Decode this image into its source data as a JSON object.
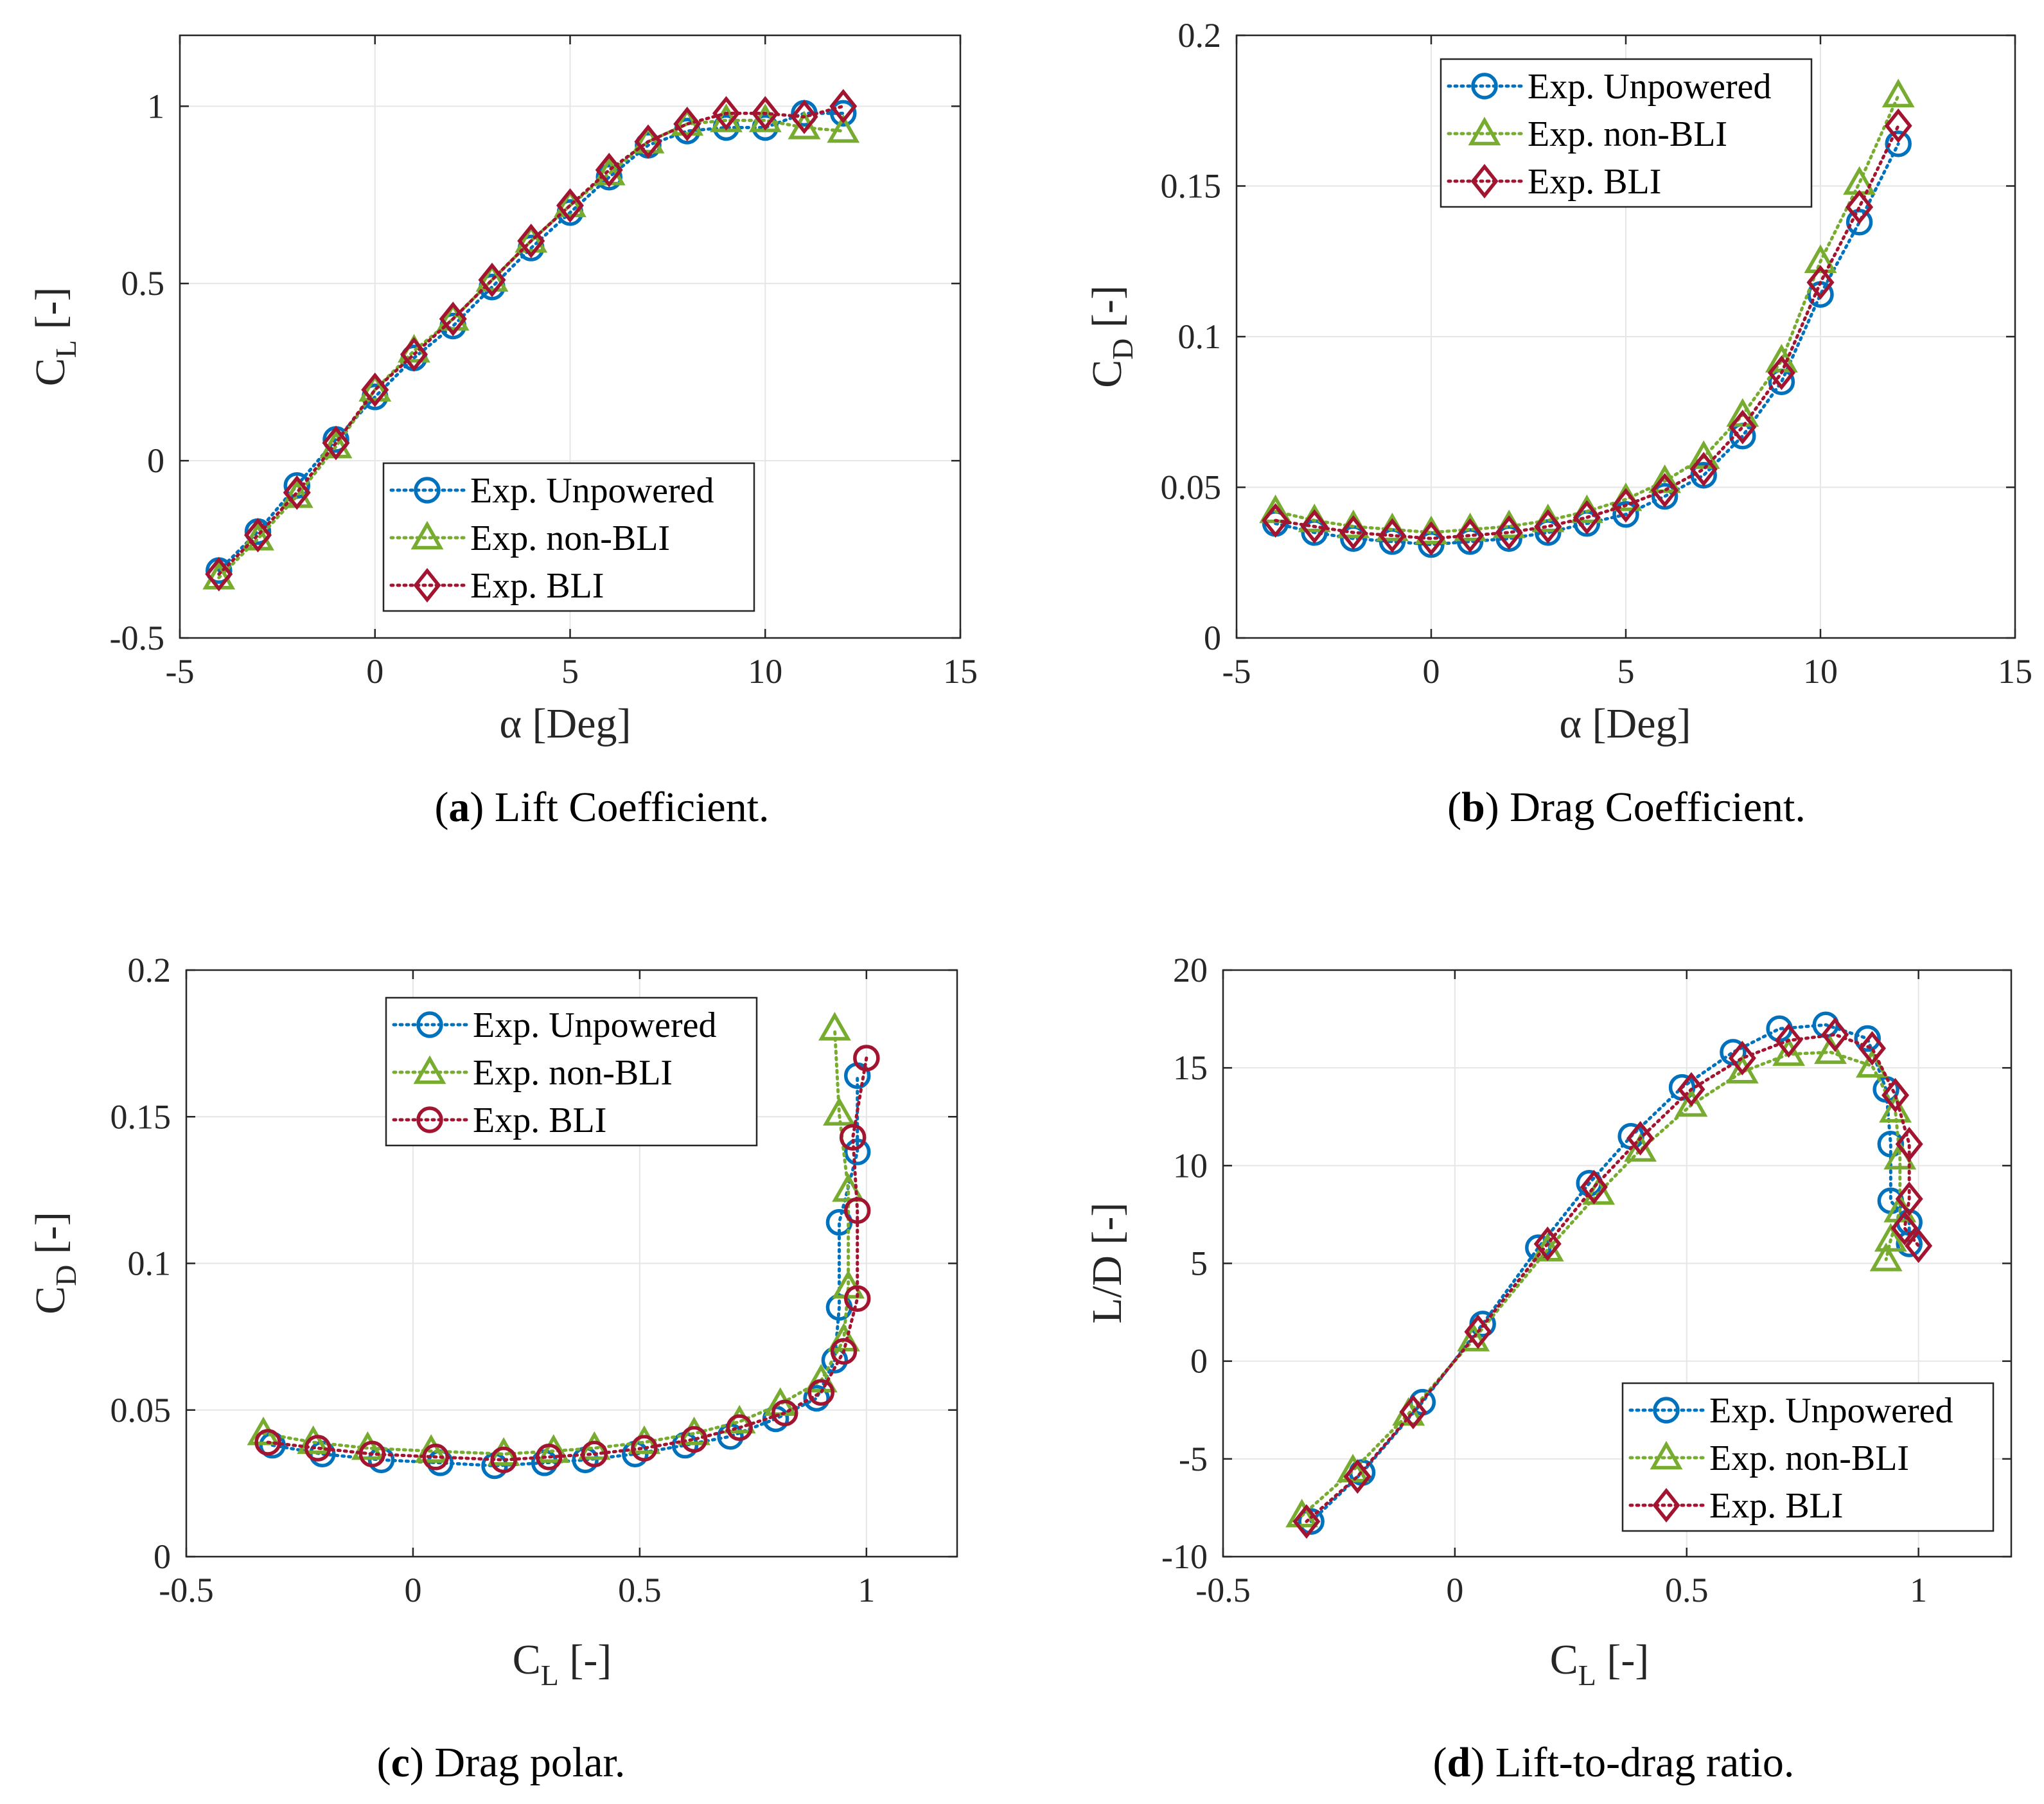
{
  "series_styles": {
    "unpowered": {
      "color": "#0072BD"
    },
    "nonbli": {
      "color": "#77AC30"
    },
    "bli": {
      "color": "#A2142F"
    }
  },
  "chart_data": [
    {
      "id": "a",
      "type": "line",
      "caption_letter": "(a)",
      "caption_text": " Lift Coefficient.",
      "xlabel": "α [Deg]",
      "ylabel_main": "C",
      "ylabel_sub": "L",
      "ylabel_unit": " [-]",
      "xlim": [
        -5,
        15
      ],
      "ylim": [
        -0.5,
        1.2
      ],
      "xticks": [
        -5,
        0,
        5,
        10,
        15
      ],
      "xtick_labels": [
        "-5",
        "0",
        "5",
        "10",
        "15"
      ],
      "yticks": [
        -0.5,
        0,
        0.5,
        1
      ],
      "ytick_labels": [
        "-0.5",
        "0",
        "0.5",
        "1"
      ],
      "grid": true,
      "legend_position": "bottom-right",
      "series": [
        {
          "name": "Exp. Unpowered",
          "style": "unpowered",
          "marker": "circle",
          "x": [
            -4,
            -3,
            -2,
            -1,
            0,
            1,
            2,
            3,
            4,
            5,
            6,
            7,
            8,
            9,
            10,
            11,
            12
          ],
          "y": [
            -0.31,
            -0.2,
            -0.07,
            0.06,
            0.18,
            0.29,
            0.38,
            0.49,
            0.6,
            0.7,
            0.8,
            0.89,
            0.93,
            0.94,
            0.94,
            0.98,
            0.98
          ]
        },
        {
          "name": "Exp. non-BLI",
          "style": "nonbli",
          "marker": "triangle",
          "x": [
            -4,
            -3,
            -2,
            -1,
            0,
            1,
            2,
            3,
            4,
            5,
            6,
            7,
            8,
            9,
            10,
            11,
            12
          ],
          "y": [
            -0.33,
            -0.22,
            -0.1,
            0.04,
            0.2,
            0.31,
            0.4,
            0.51,
            0.62,
            0.72,
            0.81,
            0.9,
            0.95,
            0.96,
            0.96,
            0.94,
            0.93
          ]
        },
        {
          "name": "Exp. BLI",
          "style": "bli",
          "marker": "diamond",
          "x": [
            -4,
            -3,
            -2,
            -1,
            0,
            1,
            2,
            3,
            4,
            5,
            6,
            7,
            8,
            9,
            10,
            11,
            12
          ],
          "y": [
            -0.32,
            -0.21,
            -0.09,
            0.05,
            0.2,
            0.3,
            0.4,
            0.51,
            0.62,
            0.72,
            0.82,
            0.9,
            0.95,
            0.98,
            0.98,
            0.97,
            1.0
          ]
        }
      ]
    },
    {
      "id": "b",
      "type": "line",
      "caption_letter": "(b)",
      "caption_text": " Drag Coefficient.",
      "xlabel": "α [Deg]",
      "ylabel_main": "C",
      "ylabel_sub": "D",
      "ylabel_unit": " [-]",
      "xlim": [
        -5,
        15
      ],
      "ylim": [
        0,
        0.2
      ],
      "xticks": [
        -5,
        0,
        5,
        10,
        15
      ],
      "xtick_labels": [
        "-5",
        "0",
        "5",
        "10",
        "15"
      ],
      "yticks": [
        0,
        0.05,
        0.1,
        0.15,
        0.2
      ],
      "ytick_labels": [
        "0",
        "0.05",
        "0.1",
        "0.15",
        "0.2"
      ],
      "grid": true,
      "legend_position": "top-right",
      "series": [
        {
          "name": "Exp. Unpowered",
          "style": "unpowered",
          "marker": "circle",
          "x": [
            -4,
            -3,
            -2,
            -1,
            0,
            1,
            2,
            3,
            4,
            5,
            6,
            7,
            8,
            9,
            10,
            11,
            12
          ],
          "y": [
            0.038,
            0.035,
            0.033,
            0.032,
            0.031,
            0.032,
            0.033,
            0.035,
            0.038,
            0.041,
            0.047,
            0.054,
            0.067,
            0.085,
            0.114,
            0.138,
            0.164
          ]
        },
        {
          "name": "Exp. non-BLI",
          "style": "nonbli",
          "marker": "triangle",
          "x": [
            -4,
            -3,
            -2,
            -1,
            0,
            1,
            2,
            3,
            4,
            5,
            6,
            7,
            8,
            9,
            10,
            11,
            12
          ],
          "y": [
            0.042,
            0.039,
            0.037,
            0.036,
            0.035,
            0.036,
            0.037,
            0.039,
            0.042,
            0.046,
            0.052,
            0.06,
            0.074,
            0.092,
            0.125,
            0.151,
            0.18
          ]
        },
        {
          "name": "Exp. BLI",
          "style": "bli",
          "marker": "diamond",
          "x": [
            -4,
            -3,
            -2,
            -1,
            0,
            1,
            2,
            3,
            4,
            5,
            6,
            7,
            8,
            9,
            10,
            11,
            12
          ],
          "y": [
            0.039,
            0.037,
            0.035,
            0.034,
            0.033,
            0.034,
            0.035,
            0.037,
            0.04,
            0.044,
            0.049,
            0.056,
            0.07,
            0.088,
            0.118,
            0.143,
            0.17
          ]
        }
      ]
    },
    {
      "id": "c",
      "type": "line",
      "caption_letter": "(c)",
      "caption_text": " Drag polar.",
      "xlabel_main": "C",
      "xlabel_sub": "L",
      "xlabel_unit": " [-]",
      "ylabel_main": "C",
      "ylabel_sub": "D",
      "ylabel_unit": " [-]",
      "xlim": [
        -0.5,
        1.2
      ],
      "ylim": [
        0,
        0.2
      ],
      "xticks": [
        -0.5,
        0,
        0.5,
        1
      ],
      "xtick_labels": [
        "-0.5",
        "0",
        "0.5",
        "1"
      ],
      "yticks": [
        0,
        0.05,
        0.1,
        0.15,
        0.2
      ],
      "ytick_labels": [
        "0",
        "0.05",
        "0.1",
        "0.15",
        "0.2"
      ],
      "grid": true,
      "legend_position": "top-right",
      "series": [
        {
          "name": "Exp. Unpowered",
          "style": "unpowered",
          "marker": "circle",
          "x": [
            -0.31,
            -0.2,
            -0.07,
            0.06,
            0.18,
            0.29,
            0.38,
            0.49,
            0.6,
            0.7,
            0.8,
            0.89,
            0.93,
            0.94,
            0.94,
            0.98,
            0.98
          ],
          "y": [
            0.038,
            0.035,
            0.033,
            0.032,
            0.031,
            0.032,
            0.033,
            0.035,
            0.038,
            0.041,
            0.047,
            0.054,
            0.067,
            0.085,
            0.114,
            0.138,
            0.164
          ]
        },
        {
          "name": "Exp. non-BLI",
          "style": "nonbli",
          "marker": "triangle",
          "x": [
            -0.33,
            -0.22,
            -0.1,
            0.04,
            0.2,
            0.31,
            0.4,
            0.51,
            0.62,
            0.72,
            0.81,
            0.9,
            0.95,
            0.96,
            0.96,
            0.94,
            0.93
          ],
          "y": [
            0.042,
            0.039,
            0.037,
            0.036,
            0.035,
            0.036,
            0.037,
            0.039,
            0.042,
            0.046,
            0.052,
            0.06,
            0.074,
            0.092,
            0.125,
            0.151,
            0.18
          ]
        },
        {
          "name": "Exp. BLI",
          "style": "bli",
          "marker": "circle",
          "x": [
            -0.32,
            -0.21,
            -0.09,
            0.05,
            0.2,
            0.3,
            0.4,
            0.51,
            0.62,
            0.72,
            0.82,
            0.9,
            0.95,
            0.98,
            0.98,
            0.97,
            1.0
          ],
          "y": [
            0.039,
            0.037,
            0.035,
            0.034,
            0.033,
            0.034,
            0.035,
            0.037,
            0.04,
            0.044,
            0.049,
            0.056,
            0.07,
            0.088,
            0.118,
            0.143,
            0.17
          ]
        }
      ]
    },
    {
      "id": "d",
      "type": "line",
      "caption_letter": "(d)",
      "caption_text": " Lift-to-drag ratio.",
      "xlabel_main": "C",
      "xlabel_sub": "L",
      "xlabel_unit": " [-]",
      "ylabel_plain": "L/D [-]",
      "xlim": [
        -0.5,
        1.2
      ],
      "ylim": [
        -10,
        20
      ],
      "xticks": [
        -0.5,
        0,
        0.5,
        1
      ],
      "xtick_labels": [
        "-0.5",
        "0",
        "0.5",
        "1"
      ],
      "yticks": [
        -10,
        -5,
        0,
        5,
        10,
        15,
        20
      ],
      "ytick_labels": [
        "-10",
        "-5",
        "0",
        "5",
        "10",
        "15",
        "20"
      ],
      "grid": true,
      "legend_position": "bottom-right",
      "series": [
        {
          "name": "Exp. Unpowered",
          "style": "unpowered",
          "marker": "circle",
          "x": [
            -0.31,
            -0.2,
            -0.07,
            0.06,
            0.18,
            0.29,
            0.38,
            0.49,
            0.6,
            0.7,
            0.8,
            0.89,
            0.93,
            0.94,
            0.94,
            0.98,
            0.98
          ],
          "y": [
            -8.2,
            -5.7,
            -2.1,
            1.9,
            5.8,
            9.1,
            11.5,
            14.0,
            15.8,
            17.0,
            17.2,
            16.5,
            13.9,
            11.1,
            8.2,
            7.1,
            6.0
          ]
        },
        {
          "name": "Exp. non-BLI",
          "style": "nonbli",
          "marker": "triangle",
          "x": [
            -0.33,
            -0.22,
            -0.1,
            0.04,
            0.2,
            0.31,
            0.4,
            0.51,
            0.62,
            0.72,
            0.81,
            0.9,
            0.95,
            0.96,
            0.96,
            0.94,
            0.93
          ],
          "y": [
            -7.9,
            -5.6,
            -2.7,
            1.1,
            5.7,
            8.6,
            10.8,
            13.1,
            14.8,
            15.7,
            15.8,
            15.1,
            12.8,
            10.4,
            7.7,
            6.2,
            5.2
          ]
        },
        {
          "name": "Exp. BLI",
          "style": "bli",
          "marker": "diamond",
          "x": [
            -0.32,
            -0.21,
            -0.09,
            0.05,
            0.2,
            0.3,
            0.4,
            0.51,
            0.62,
            0.72,
            0.82,
            0.9,
            0.95,
            0.98,
            0.98,
            0.97,
            1.0
          ],
          "y": [
            -8.2,
            -5.9,
            -2.6,
            1.5,
            6.0,
            8.9,
            11.4,
            13.9,
            15.5,
            16.4,
            16.7,
            16.0,
            13.6,
            11.1,
            8.3,
            6.8,
            5.9
          ]
        }
      ]
    }
  ]
}
